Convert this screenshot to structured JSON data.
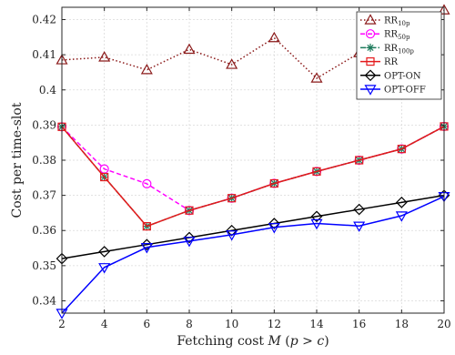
{
  "chart_data": {
    "type": "line",
    "xlabel": "Fetching cost M (p > c)",
    "xlabel_parts": {
      "prefix": "Fetching cost ",
      "var_m": "M",
      "paren": " (",
      "var_p": "p",
      "gt": " > ",
      "var_c": "c",
      "close": ")"
    },
    "ylabel": "Cost per time-slot",
    "x": [
      2,
      4,
      6,
      8,
      10,
      12,
      14,
      16,
      18,
      20
    ],
    "xticks": [
      "2",
      "4",
      "6",
      "8",
      "10",
      "12",
      "14",
      "16",
      "18",
      "20"
    ],
    "yticks": [
      "0.34",
      "0.35",
      "0.36",
      "0.37",
      "0.38",
      "0.39",
      "0.4",
      "0.41",
      "0.42"
    ],
    "xlim": [
      2,
      20
    ],
    "ylim": [
      0.3365,
      0.4235
    ],
    "grid": true,
    "legend_position": "top-right",
    "series": [
      {
        "name": "RR10p",
        "name_main": "RR",
        "name_sub": "10p",
        "color": "#8b1a1a",
        "dash": "dotted",
        "marker": "triangle-up",
        "values": [
          0.4085,
          0.4093,
          0.4057,
          0.4115,
          0.4072,
          0.4148,
          0.4033,
          0.4105,
          0.4138,
          0.4227
        ]
      },
      {
        "name": "RR50p",
        "name_main": "RR",
        "name_sub": "50p",
        "color": "#ff00ff",
        "dash": "dashed",
        "marker": "circle",
        "values": [
          0.3895,
          0.3775,
          0.3733,
          0.3657,
          0.3692,
          0.3734,
          0.3768,
          0.38,
          0.3832,
          0.3896
        ]
      },
      {
        "name": "RR100p",
        "name_main": "RR",
        "name_sub": "100p",
        "color": "#1e7b5c",
        "dash": "dashdot",
        "marker": "asterisk",
        "values": [
          0.3895,
          0.3752,
          0.3612,
          0.3657,
          0.3692,
          0.3734,
          0.3768,
          0.38,
          0.3832,
          0.3896
        ]
      },
      {
        "name": "RR",
        "name_main": "RR",
        "name_sub": "",
        "color": "#e41a1c",
        "dash": "solid",
        "marker": "square",
        "values": [
          0.3895,
          0.3752,
          0.3612,
          0.3657,
          0.3692,
          0.3734,
          0.3768,
          0.38,
          0.3832,
          0.3896
        ]
      },
      {
        "name": "OPT-ON",
        "name_main": "OPT-ON",
        "name_sub": "",
        "color": "#000000",
        "dash": "solid",
        "marker": "diamond",
        "values": [
          0.352,
          0.354,
          0.356,
          0.358,
          0.36,
          0.362,
          0.364,
          0.366,
          0.368,
          0.37
        ]
      },
      {
        "name": "OPT-OFF",
        "name_main": "OPT-OFF",
        "name_sub": "",
        "color": "#0000ff",
        "dash": "solid",
        "marker": "triangle-down",
        "values": [
          0.3365,
          0.3495,
          0.3552,
          0.357,
          0.3588,
          0.3609,
          0.362,
          0.3613,
          0.3642,
          0.3697
        ]
      }
    ]
  }
}
